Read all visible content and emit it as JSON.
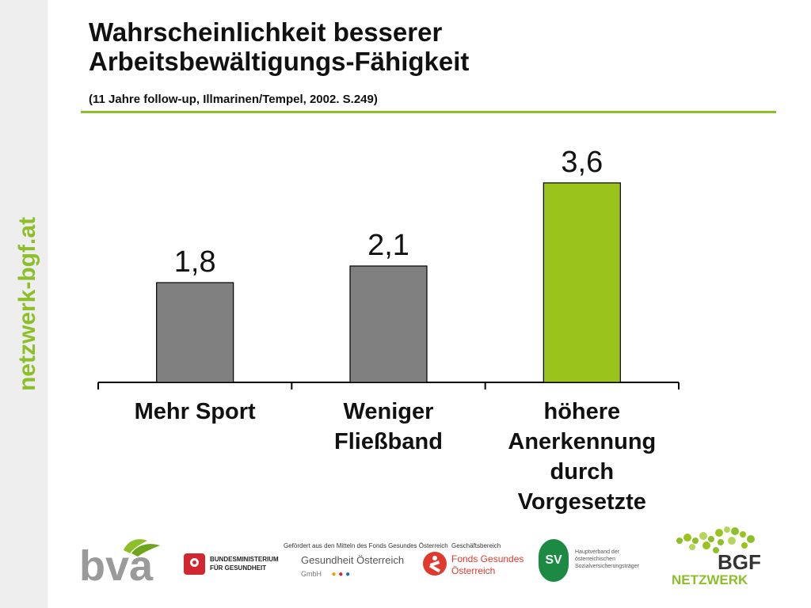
{
  "side_label": "netzwerk-bgf.at",
  "title_lines": [
    "Wahrscheinlichkeit besserer",
    "Arbeitsbewältigungs-Fähigkeit"
  ],
  "subtitle": "(11 Jahre follow-up, Illmarinen/Tempel, 2002. S.249)",
  "colors": {
    "accent": "#8dbf2a",
    "bar_gray": "#808080",
    "bar_green": "#9ac31c"
  },
  "chart_data": {
    "type": "bar",
    "categories": [
      [
        "Mehr Sport"
      ],
      [
        "Weniger",
        "Fließband"
      ],
      [
        "höhere",
        "Anerkennung",
        "durch",
        "Vorgesetzte"
      ]
    ],
    "values": [
      1.8,
      2.1,
      3.6
    ],
    "value_labels": [
      "1,8",
      "2,1",
      "3,6"
    ],
    "bar_colors": [
      "#808080",
      "#808080",
      "#9ac31c"
    ],
    "ylim": [
      0,
      4
    ],
    "grid": false,
    "legend": false
  },
  "footer": {
    "bva": "bva",
    "bmg_name": "BUNDESMINISTERIUM",
    "bmg_sub": "FÜR GESUNDHEIT",
    "gefoerdert": "Gefördert aus den Mitteln des Fonds Gesundes Österreich",
    "goe_name": "Gesundheit Österreich",
    "goe_sub": "GmbH",
    "geschaeftsbereich": "Geschäftsbereich",
    "fgoe_line1": "Fonds Gesundes",
    "fgoe_line2": "Österreich",
    "sv_mark": "SV",
    "hv_line1": "Hauptverband der",
    "hv_line2": "österreichischen",
    "hv_line3": "Sozialversicherungsträger",
    "bgf_logo": "BGF",
    "bgf_sub": "NETZWERK"
  }
}
